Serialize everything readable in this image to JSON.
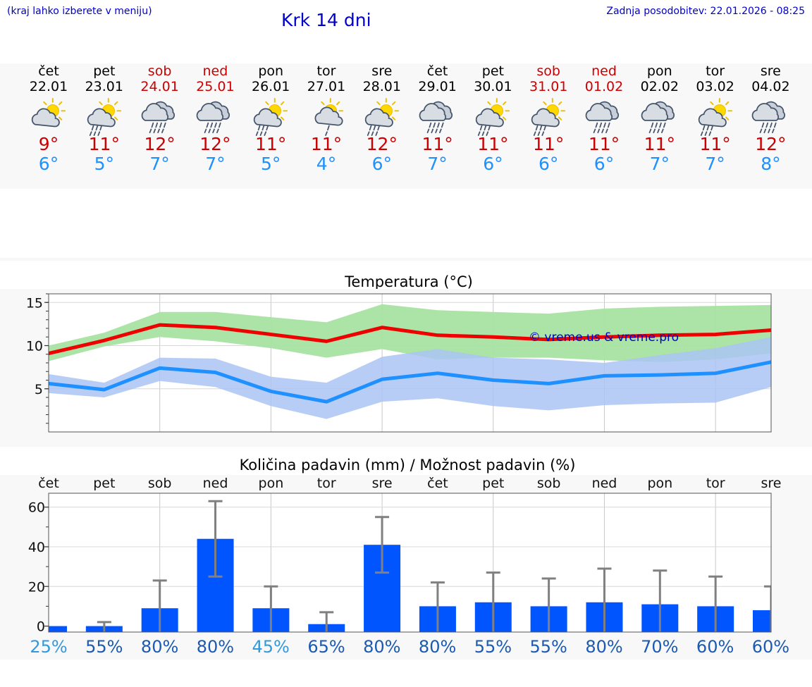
{
  "header": {
    "note": "(kraj lahko izberete v meniju)",
    "title": "Krk 14 dni",
    "updated": "Zadnja posodobitev: 22.01.2026 - 08:25"
  },
  "days": [
    {
      "name": "čet",
      "date": "22.01",
      "weekend": false,
      "icon": "sun-cloud",
      "tmax": "9°",
      "tmin": "6°"
    },
    {
      "name": "pet",
      "date": "23.01",
      "weekend": false,
      "icon": "sun-cloud-rain",
      "tmax": "11°",
      "tmin": "5°"
    },
    {
      "name": "sob",
      "date": "24.01",
      "weekend": true,
      "icon": "cloud-rain",
      "tmax": "12°",
      "tmin": "7°"
    },
    {
      "name": "ned",
      "date": "25.01",
      "weekend": true,
      "icon": "cloud-rain",
      "tmax": "12°",
      "tmin": "7°"
    },
    {
      "name": "pon",
      "date": "26.01",
      "weekend": false,
      "icon": "sun-cloud-rain",
      "tmax": "11°",
      "tmin": "5°"
    },
    {
      "name": "tor",
      "date": "27.01",
      "weekend": false,
      "icon": "sun-cloud-drizzle",
      "tmax": "11°",
      "tmin": "4°"
    },
    {
      "name": "sre",
      "date": "28.01",
      "weekend": false,
      "icon": "sun-cloud-rain",
      "tmax": "12°",
      "tmin": "6°"
    },
    {
      "name": "čet",
      "date": "29.01",
      "weekend": false,
      "icon": "cloud-rain",
      "tmax": "11°",
      "tmin": "7°"
    },
    {
      "name": "pet",
      "date": "30.01",
      "weekend": false,
      "icon": "sun-cloud-rain",
      "tmax": "11°",
      "tmin": "6°"
    },
    {
      "name": "sob",
      "date": "31.01",
      "weekend": true,
      "icon": "sun-cloud-rain",
      "tmax": "11°",
      "tmin": "6°"
    },
    {
      "name": "ned",
      "date": "01.02",
      "weekend": true,
      "icon": "cloud-rain",
      "tmax": "11°",
      "tmin": "6°"
    },
    {
      "name": "pon",
      "date": "02.02",
      "weekend": false,
      "icon": "cloud-rain",
      "tmax": "11°",
      "tmin": "7°"
    },
    {
      "name": "tor",
      "date": "03.02",
      "weekend": false,
      "icon": "sun-cloud-rain",
      "tmax": "11°",
      "tmin": "7°"
    },
    {
      "name": "sre",
      "date": "04.02",
      "weekend": false,
      "icon": "cloud-rain",
      "tmax": "12°",
      "tmin": "8°"
    }
  ],
  "colors": {
    "max_line": "#ee0000",
    "max_band": "#a6e3a1",
    "min_line": "#1e90ff",
    "min_band": "#aac4f5",
    "bar": "#0055ff",
    "error_bar": "#808080",
    "pct_light": "#3399dd",
    "pct_dark": "#1a5ab4"
  },
  "chart_data": [
    {
      "type": "line",
      "title": "Temperatura (°C)",
      "watermark": "© vreme.us & vreme.pro",
      "x_index": [
        0,
        1,
        2,
        3,
        4,
        5,
        6,
        7,
        8,
        9,
        10,
        11,
        12,
        13
      ],
      "ylim": [
        0,
        16
      ],
      "yticks": [
        5,
        10,
        15
      ],
      "series": [
        {
          "name": "max",
          "values": [
            9.1,
            10.6,
            12.4,
            12.1,
            11.3,
            10.5,
            12.1,
            11.2,
            11.0,
            10.7,
            11.0,
            11.2,
            11.3,
            11.8
          ],
          "band_low": [
            8.2,
            9.9,
            11.0,
            10.5,
            9.7,
            8.6,
            9.6,
            8.4,
            8.6,
            8.6,
            8.3,
            8.1,
            8.4,
            9.1
          ],
          "band_high": [
            10.0,
            11.5,
            13.9,
            13.9,
            13.3,
            12.7,
            14.8,
            14.1,
            13.9,
            13.7,
            14.3,
            14.5,
            14.6,
            14.7
          ]
        },
        {
          "name": "min",
          "values": [
            5.6,
            4.9,
            7.4,
            6.9,
            4.7,
            3.5,
            6.1,
            6.8,
            6.0,
            5.6,
            6.5,
            6.6,
            6.8,
            8.1
          ],
          "band_low": [
            4.5,
            4.0,
            5.9,
            5.2,
            3.0,
            1.5,
            3.5,
            3.9,
            3.0,
            2.5,
            3.1,
            3.3,
            3.4,
            5.2
          ],
          "band_high": [
            6.7,
            5.7,
            8.6,
            8.5,
            6.4,
            5.7,
            8.7,
            9.6,
            8.6,
            8.4,
            8.0,
            8.9,
            9.7,
            11.0
          ]
        }
      ]
    },
    {
      "type": "bar",
      "title": "Količina padavin (mm) / Možnost padavin (%)",
      "categories": [
        "čet",
        "pet",
        "sob",
        "ned",
        "pon",
        "tor",
        "sre",
        "čet",
        "pet",
        "sob",
        "ned",
        "pon",
        "tor",
        "sre"
      ],
      "values": [
        0,
        0,
        9,
        44,
        9,
        1,
        41,
        10,
        12,
        10,
        12,
        11,
        10,
        8
      ],
      "error_high": [
        null,
        2,
        23,
        63,
        20,
        7,
        55,
        22,
        27,
        24,
        29,
        28,
        25,
        20
      ],
      "error_low": [
        null,
        0,
        0,
        25,
        0,
        0,
        27,
        0,
        0,
        0,
        0,
        0,
        0,
        0
      ],
      "ylim": [
        -3,
        67
      ],
      "yticks": [
        0,
        20,
        40,
        60
      ],
      "probability": [
        "25%",
        "55%",
        "80%",
        "80%",
        "45%",
        "65%",
        "80%",
        "80%",
        "55%",
        "55%",
        "80%",
        "70%",
        "60%",
        "60%"
      ],
      "probability_shade": [
        "light",
        "dark",
        "dark",
        "dark",
        "light",
        "dark",
        "dark",
        "dark",
        "dark",
        "dark",
        "dark",
        "dark",
        "dark",
        "dark"
      ]
    }
  ]
}
